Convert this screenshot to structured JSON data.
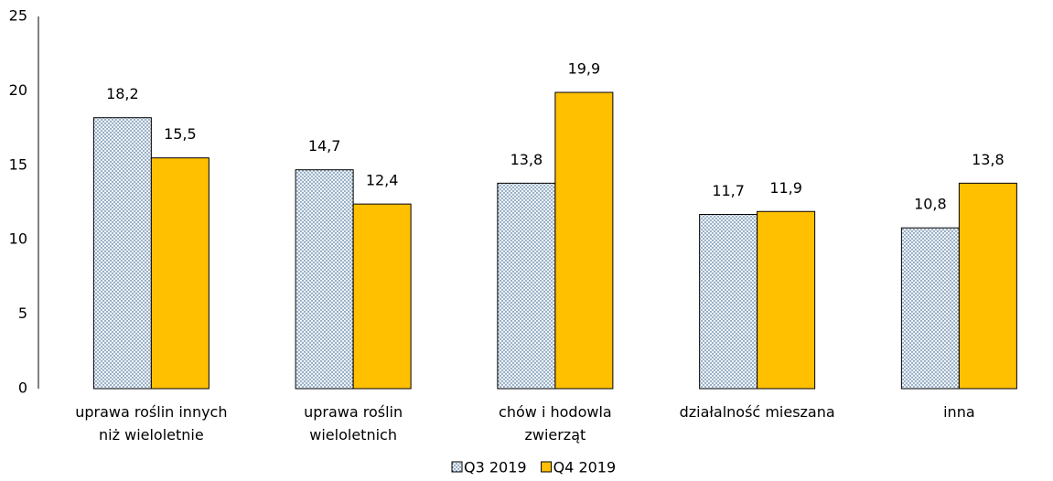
{
  "chart_data": {
    "type": "bar",
    "categories": [
      "uprawa roślin innych\nniż wieloletnie",
      "uprawa roślin\nwieloletnich",
      "chów i hodowla\nzwierząt",
      "działalność mieszana",
      "inna"
    ],
    "series": [
      {
        "name": "Q3 2019",
        "color": "#1f4e79",
        "pattern": "dots",
        "values": [
          18.2,
          14.7,
          13.8,
          11.7,
          10.8
        ],
        "value_labels": [
          "18,2",
          "14,7",
          "13,8",
          "11,7",
          "10,8"
        ]
      },
      {
        "name": "Q4 2019",
        "color": "#ffc000",
        "values": [
          15.5,
          12.4,
          19.9,
          11.9,
          13.8
        ],
        "value_labels": [
          "15,5",
          "12,4",
          "19,9",
          "11,9",
          "13,8"
        ]
      }
    ],
    "ylim": [
      0,
      25
    ],
    "yticks": [
      0,
      5,
      10,
      15,
      20,
      25
    ],
    "grid": false,
    "legend": "bottom"
  }
}
